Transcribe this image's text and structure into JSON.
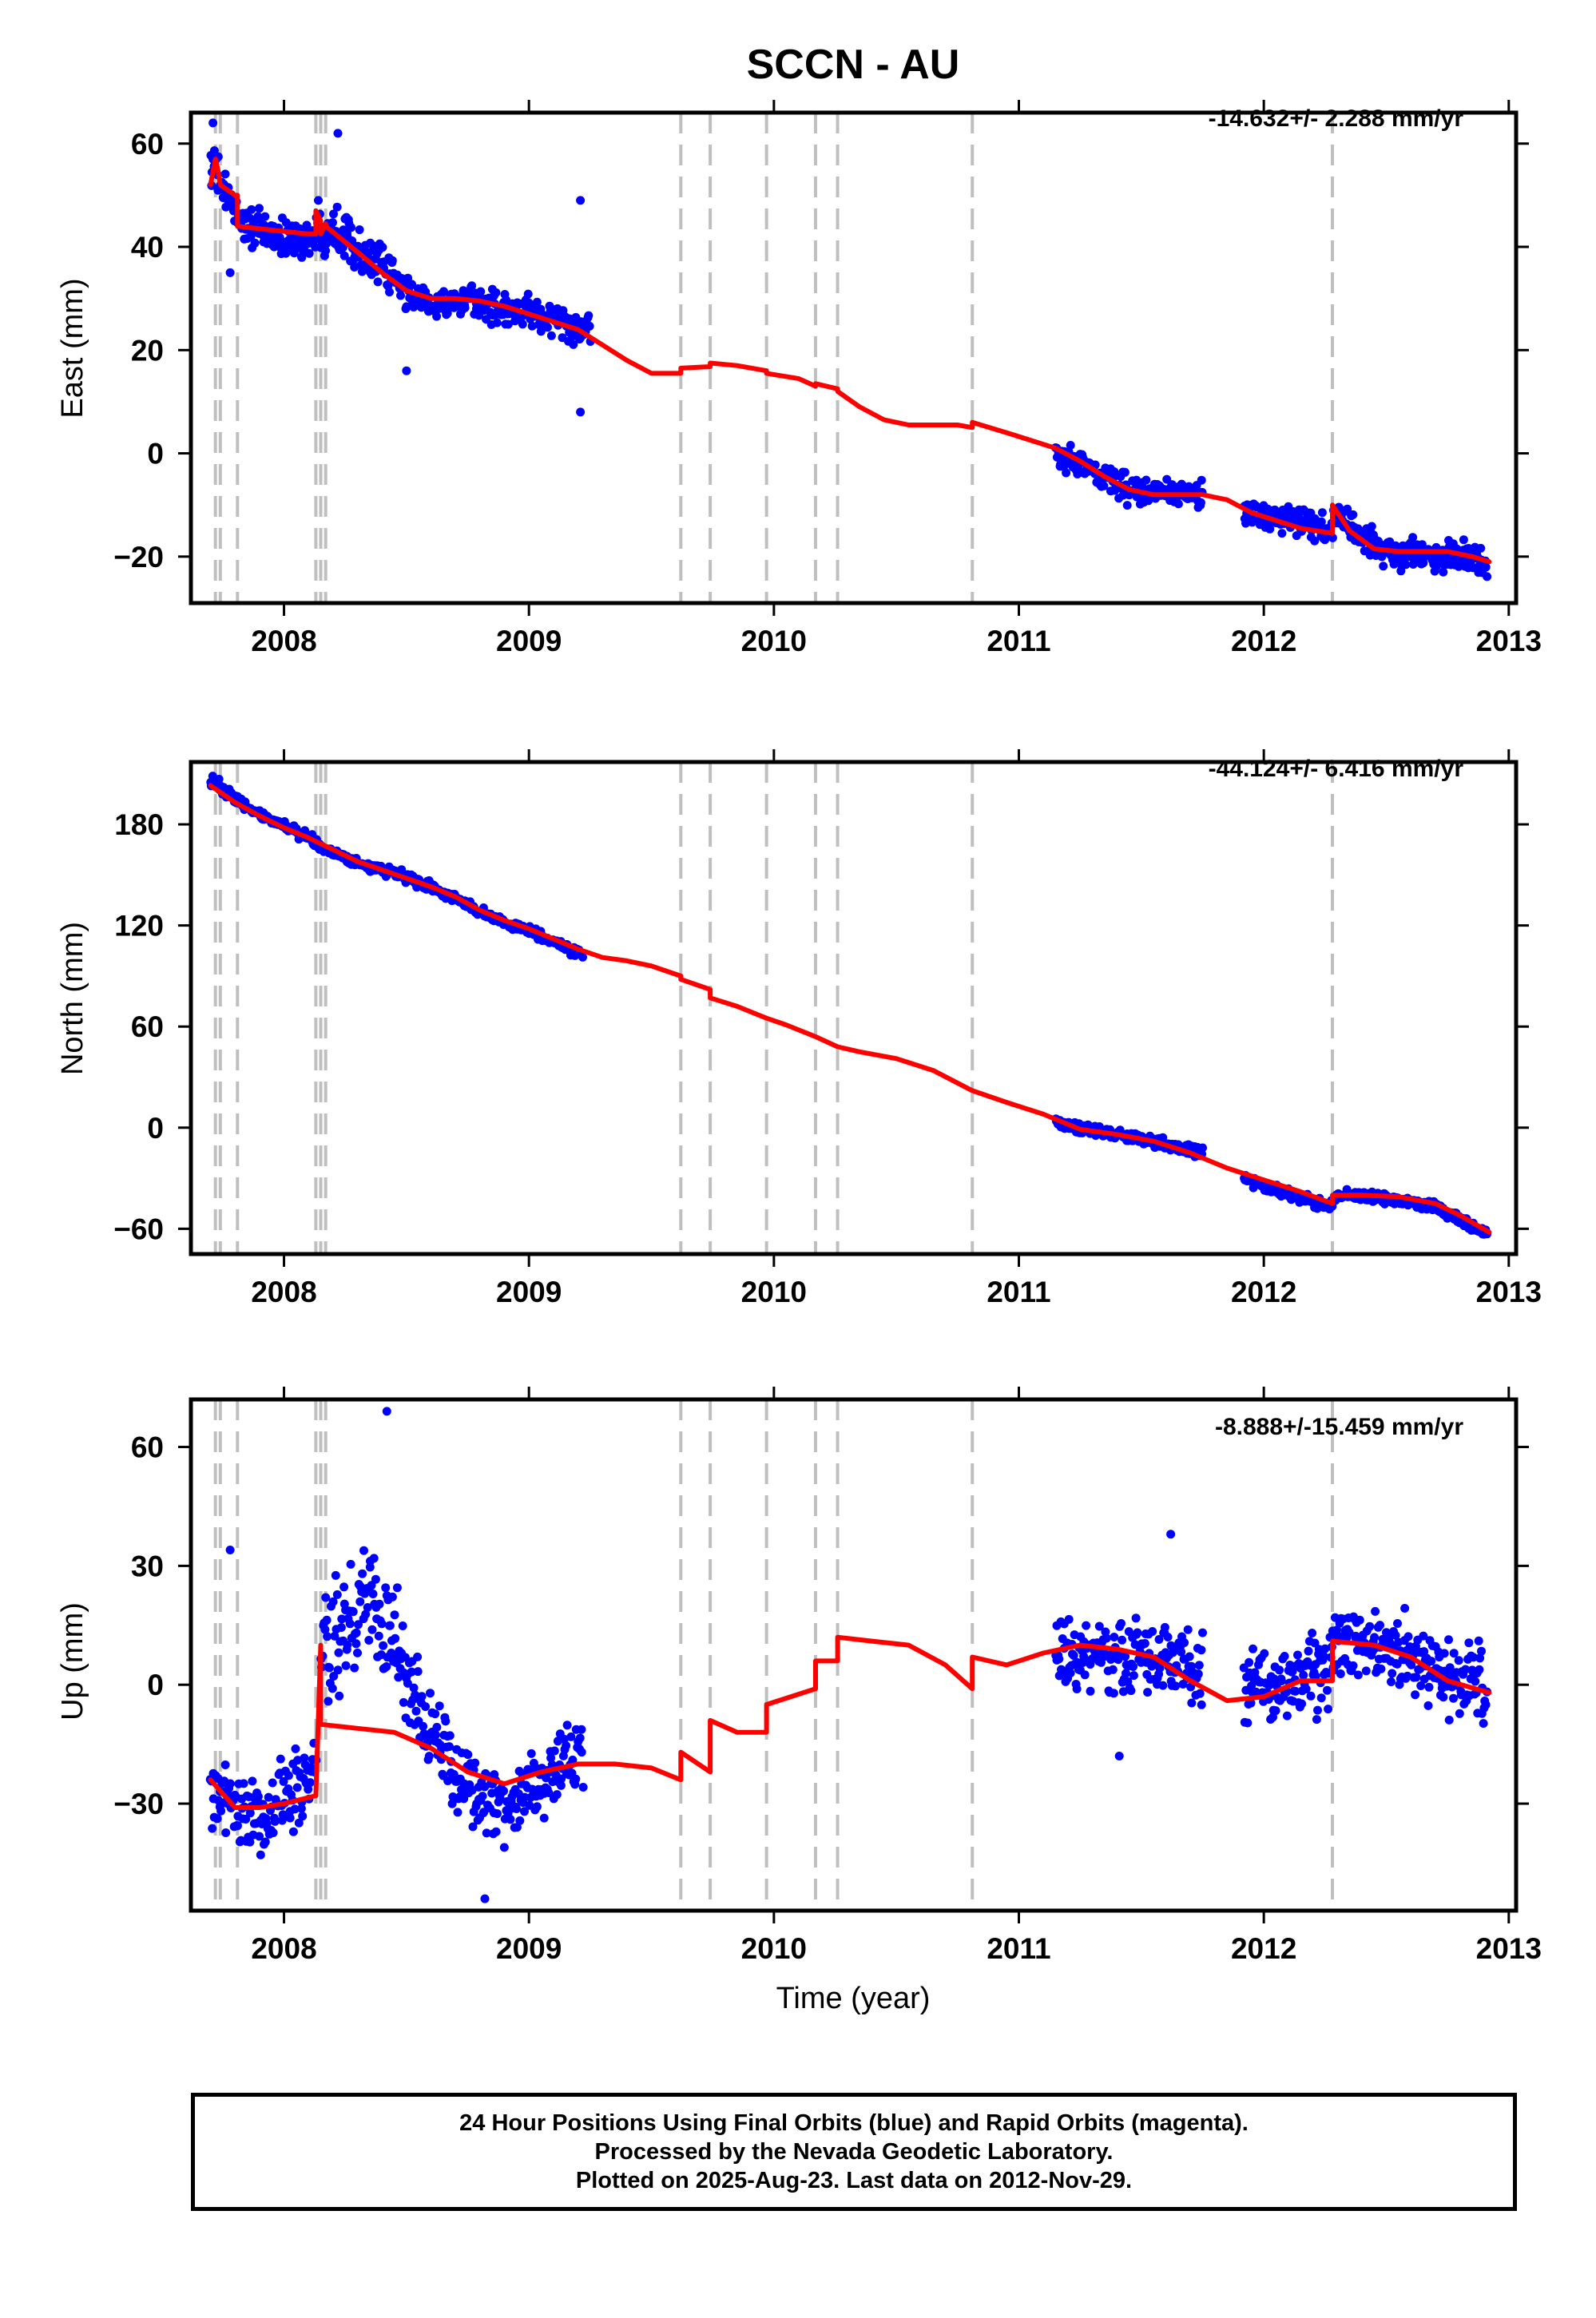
{
  "title": "SCCN - AU",
  "xlabel": "Time (year)",
  "colors": {
    "data": "#0000ff",
    "model": "#ff0000",
    "break": "#bfbfbf",
    "axis": "#000000"
  },
  "caption": [
    "24 Hour Positions Using Final Orbits (blue) and Rapid Orbits (magenta).",
    "Processed by the Nevada Geodetic Laboratory.",
    "Plotted on 2025-Aug-23. Last data on 2012-Nov-29."
  ],
  "chart_data": [
    {
      "type": "scatter",
      "ylabel": "East (mm)",
      "rate_label": "-14.632+/- 2.288 mm/yr",
      "xlim": [
        2007.62,
        2013.03
      ],
      "ylim": [
        -29,
        66
      ],
      "xticks": [
        2008,
        2009,
        2010,
        2011,
        2012,
        2013
      ],
      "yticks": [
        -20,
        0,
        20,
        40,
        60
      ],
      "grid": false,
      "breaks": [
        2007.72,
        2007.74,
        2007.81,
        2008.13,
        2008.15,
        2008.17,
        2009.62,
        2009.74,
        2009.97,
        2010.17,
        2010.26,
        2010.81,
        2012.28
      ],
      "data_segments": [
        {
          "x": [
            2007.7,
            2007.75,
            2007.8,
            2007.85,
            2007.9,
            2007.95,
            2008.0,
            2008.05,
            2008.1,
            2008.15,
            2008.2,
            2008.25,
            2008.3,
            2008.4,
            2008.5,
            2008.6,
            2008.7,
            2008.8,
            2008.9,
            2009.0,
            2009.1,
            2009.2,
            2009.25
          ],
          "y": [
            57,
            51,
            47,
            44,
            43,
            42,
            42,
            41,
            42,
            43,
            44,
            43,
            40,
            36,
            31,
            29,
            29,
            29,
            28,
            27,
            26,
            24,
            24
          ],
          "spread": [
            3.5,
            3.5,
            3,
            3,
            3,
            3,
            3,
            3,
            3.5,
            4,
            4,
            4,
            3.5,
            3,
            2.5,
            2.5,
            2.5,
            2.5,
            2.5,
            2.5,
            2.5,
            3,
            3
          ]
        },
        {
          "x": [
            2011.15,
            2011.25,
            2011.35,
            2011.45,
            2011.55,
            2011.65,
            2011.75
          ],
          "y": [
            0,
            -2,
            -5,
            -7,
            -7.5,
            -8,
            -8
          ],
          "spread": [
            2.5,
            2.5,
            2.5,
            2.5,
            2.5,
            2.5,
            2.5
          ]
        },
        {
          "x": [
            2011.92,
            2012.0,
            2012.1,
            2012.2,
            2012.27,
            2012.3,
            2012.4,
            2012.5,
            2012.6,
            2012.7,
            2012.8,
            2012.91
          ],
          "y": [
            -11,
            -12,
            -13,
            -14,
            -15,
            -12,
            -16,
            -19,
            -19.5,
            -19.5,
            -20,
            -21
          ],
          "spread": [
            2.5,
            2.5,
            2.5,
            2.5,
            2.5,
            2.5,
            2.5,
            2.5,
            2.5,
            2.5,
            2.5,
            2.5
          ]
        }
      ],
      "outliers": [
        [
          2007.71,
          64
        ],
        [
          2007.78,
          35
        ],
        [
          2008.22,
          62
        ],
        [
          2008.5,
          16
        ],
        [
          2009.21,
          49
        ],
        [
          2009.21,
          8
        ],
        [
          2008.14,
          49
        ]
      ],
      "model": {
        "x": [
          2007.7,
          2007.72,
          2007.73,
          2007.74,
          2007.8,
          2007.81,
          2007.81,
          2007.9,
          2008.0,
          2008.1,
          2008.13,
          2008.13,
          2008.15,
          2008.15,
          2008.17,
          2008.17,
          2008.3,
          2008.4,
          2008.5,
          2008.6,
          2008.7,
          2008.8,
          2008.9,
          2009.0,
          2009.1,
          2009.2,
          2009.3,
          2009.4,
          2009.5,
          2009.62,
          2009.62,
          2009.74,
          2009.74,
          2009.85,
          2009.97,
          2009.97,
          2010.1,
          2010.17,
          2010.17,
          2010.26,
          2010.26,
          2010.35,
          2010.45,
          2010.55,
          2010.65,
          2010.75,
          2010.81,
          2010.81,
          2010.95,
          2011.05,
          2011.15,
          2011.25,
          2011.35,
          2011.45,
          2011.55,
          2011.65,
          2011.75,
          2011.85,
          2011.95,
          2012.05,
          2012.15,
          2012.28,
          2012.28,
          2012.35,
          2012.45,
          2012.55,
          2012.65,
          2012.75,
          2012.85,
          2012.92
        ],
        "y": [
          52,
          57,
          55,
          52,
          50,
          50,
          44,
          43.5,
          43,
          42.5,
          42.5,
          47,
          45,
          42.5,
          44.5,
          44,
          39,
          35,
          31.5,
          30,
          30,
          29.5,
          28.5,
          27,
          25.5,
          24,
          21,
          18,
          15.5,
          15.5,
          16.5,
          16.8,
          17.5,
          17,
          16,
          15.5,
          14.5,
          13,
          13.5,
          12.5,
          12,
          9,
          6.5,
          5.5,
          5.5,
          5.5,
          5,
          6,
          4,
          2.5,
          1,
          -1.5,
          -4.5,
          -7,
          -8,
          -8,
          -8,
          -9,
          -11.5,
          -13,
          -14.5,
          -15.5,
          -10,
          -15,
          -18.5,
          -19,
          -19,
          -19,
          -20,
          -21
        ]
      }
    },
    {
      "type": "scatter",
      "ylabel": "North (mm)",
      "rate_label": "-44.124+/- 6.416 mm/yr",
      "xlim": [
        2007.62,
        2013.03
      ],
      "ylim": [
        -75,
        217
      ],
      "xticks": [
        2008,
        2009,
        2010,
        2011,
        2012,
        2013
      ],
      "yticks": [
        -60,
        0,
        60,
        120,
        180
      ],
      "grid": false,
      "breaks": [
        2007.72,
        2007.74,
        2007.81,
        2008.13,
        2008.15,
        2008.17,
        2009.62,
        2009.74,
        2009.97,
        2010.17,
        2010.26,
        2010.81,
        2012.28
      ],
      "data_segments": [
        {
          "x": [
            2007.7,
            2007.8,
            2007.9,
            2008.0,
            2008.1,
            2008.2,
            2008.3,
            2008.4,
            2008.5,
            2008.6,
            2008.7,
            2008.8,
            2008.9,
            2009.0,
            2009.1,
            2009.22
          ],
          "y": [
            206,
            195,
            186,
            179,
            172,
            163,
            157,
            153,
            149,
            143,
            136,
            128,
            122,
            117,
            111,
            102
          ],
          "spread": [
            3,
            2.5,
            2.5,
            2.5,
            2.5,
            2.5,
            2.5,
            2.5,
            2.5,
            2.5,
            2.5,
            2.5,
            2.5,
            2.5,
            2.5,
            3
          ]
        },
        {
          "x": [
            2011.15,
            2011.25,
            2011.35,
            2011.45,
            2011.55,
            2011.65,
            2011.75
          ],
          "y": [
            3,
            -1,
            -3,
            -5,
            -8,
            -12,
            -15
          ],
          "spread": [
            3,
            2.5,
            2.5,
            2.5,
            2.5,
            2.5,
            2.5
          ]
        },
        {
          "x": [
            2011.92,
            2012.0,
            2012.1,
            2012.2,
            2012.27,
            2012.3,
            2012.4,
            2012.5,
            2012.6,
            2012.7,
            2012.8,
            2012.91
          ],
          "y": [
            -30,
            -35,
            -39,
            -44,
            -47,
            -40,
            -41,
            -42,
            -44,
            -47,
            -55,
            -63
          ],
          "spread": [
            2.5,
            2.5,
            2.5,
            2.5,
            2.5,
            2.5,
            2.5,
            2.5,
            2.5,
            2.5,
            2.5,
            2.5
          ]
        }
      ],
      "outliers": [],
      "model": {
        "x": [
          2007.7,
          2007.8,
          2007.9,
          2008.0,
          2008.1,
          2008.2,
          2008.3,
          2008.4,
          2008.5,
          2008.6,
          2008.7,
          2008.8,
          2008.9,
          2009.0,
          2009.1,
          2009.2,
          2009.3,
          2009.4,
          2009.5,
          2009.62,
          2009.62,
          2009.74,
          2009.74,
          2009.85,
          2009.97,
          2010.05,
          2010.17,
          2010.26,
          2010.35,
          2010.5,
          2010.65,
          2010.81,
          2010.95,
          2011.1,
          2011.25,
          2011.4,
          2011.55,
          2011.7,
          2011.85,
          2012.0,
          2012.15,
          2012.28,
          2012.28,
          2012.4,
          2012.55,
          2012.7,
          2012.8,
          2012.92
        ],
        "y": [
          203,
          193,
          185,
          178,
          172,
          165,
          158,
          153,
          148,
          143,
          137,
          129,
          123,
          118,
          112,
          106,
          101,
          99,
          96,
          90,
          88,
          82,
          77,
          72,
          65,
          61,
          54,
          48,
          45,
          41,
          34,
          22,
          15,
          8,
          -1,
          -4,
          -8,
          -15,
          -24,
          -31,
          -38,
          -45,
          -40,
          -40,
          -41,
          -45,
          -52,
          -62
        ]
      }
    },
    {
      "type": "scatter",
      "ylabel": "Up (mm)",
      "rate_label": "-8.888+/-15.459 mm/yr",
      "xlim": [
        2007.62,
        2013.03
      ],
      "ylim": [
        -57,
        72
      ],
      "xticks": [
        2008,
        2009,
        2010,
        2011,
        2012,
        2013
      ],
      "yticks": [
        -30,
        0,
        30,
        60
      ],
      "grid": false,
      "breaks": [
        2007.72,
        2007.74,
        2007.81,
        2008.13,
        2008.15,
        2008.17,
        2009.62,
        2009.74,
        2009.97,
        2010.17,
        2010.26,
        2010.81,
        2012.28
      ],
      "data_segments": [
        {
          "x": [
            2007.7,
            2007.8,
            2007.9,
            2008.0,
            2008.1,
            2008.13
          ],
          "y": [
            -28,
            -32,
            -33,
            -30,
            -25,
            -22
          ],
          "spread": [
            9,
            9,
            9,
            9,
            9,
            9
          ]
        },
        {
          "x": [
            2008.15,
            2008.2,
            2008.3,
            2008.4,
            2008.5,
            2008.6,
            2008.7,
            2008.8,
            2008.9,
            2009.0,
            2009.1,
            2009.22
          ],
          "y": [
            8,
            12,
            18,
            20,
            2,
            -12,
            -22,
            -28,
            -30,
            -27,
            -23,
            -18
          ],
          "spread": [
            11,
            12,
            14,
            14,
            11,
            9,
            8,
            8,
            8,
            8,
            8,
            8
          ]
        },
        {
          "x": [
            2011.15,
            2011.25,
            2011.35,
            2011.45,
            2011.55,
            2011.65,
            2011.75
          ],
          "y": [
            6,
            7,
            7,
            7,
            7,
            6,
            3
          ],
          "spread": [
            8,
            8,
            8,
            8,
            8,
            8,
            8
          ]
        },
        {
          "x": [
            2011.92,
            2012.0,
            2012.1,
            2012.2,
            2012.27,
            2012.3,
            2012.4,
            2012.5,
            2012.6,
            2012.7,
            2012.8,
            2012.91
          ],
          "y": [
            -2,
            0,
            1,
            3,
            3,
            9,
            10,
            9,
            7,
            4,
            1,
            -2
          ],
          "spread": [
            8,
            8,
            8,
            8,
            8,
            8,
            8,
            8,
            8,
            8,
            8,
            8
          ]
        }
      ],
      "outliers": [
        [
          2007.78,
          34
        ],
        [
          2008.42,
          69
        ],
        [
          2008.82,
          -54
        ],
        [
          2011.62,
          38
        ],
        [
          2011.41,
          -18
        ]
      ],
      "model": {
        "x": [
          2007.7,
          2007.8,
          2007.9,
          2008.0,
          2008.13,
          2008.13,
          2008.15,
          2008.15,
          2008.3,
          2008.45,
          2008.6,
          2008.75,
          2008.9,
          2009.05,
          2009.2,
          2009.35,
          2009.5,
          2009.62,
          2009.62,
          2009.74,
          2009.74,
          2009.85,
          2009.97,
          2009.97,
          2010.17,
          2010.17,
          2010.26,
          2010.26,
          2010.4,
          2010.55,
          2010.7,
          2010.81,
          2010.81,
          2010.95,
          2011.1,
          2011.25,
          2011.4,
          2011.55,
          2011.7,
          2011.85,
          2012.0,
          2012.15,
          2012.28,
          2012.28,
          2012.45,
          2012.6,
          2012.75,
          2012.92
        ],
        "y": [
          -24,
          -31,
          -31,
          -30,
          -28,
          -28,
          10,
          -10,
          -11,
          -12,
          -16,
          -22,
          -25,
          -22,
          -20,
          -20,
          -21,
          -24,
          -17,
          -22,
          -9,
          -12,
          -12,
          -5,
          -1,
          6,
          6,
          12,
          11,
          10,
          5,
          -1,
          7,
          5,
          8,
          10,
          9,
          7,
          1,
          -4,
          -3,
          1,
          1,
          11,
          10,
          7,
          1,
          -2
        ]
      }
    }
  ]
}
